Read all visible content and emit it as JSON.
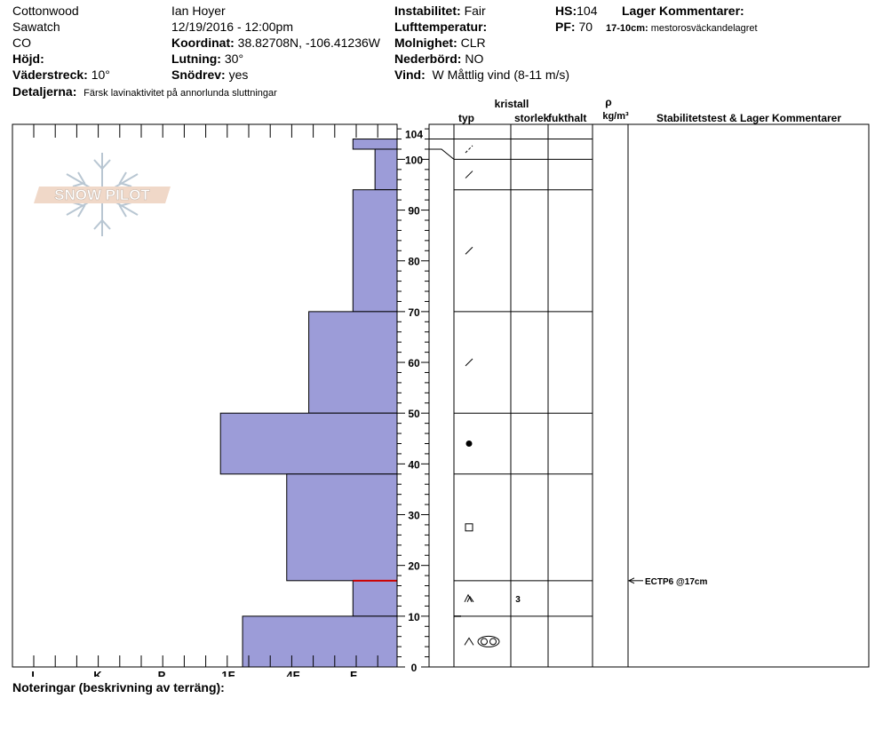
{
  "header": {
    "location": "Cottonwood",
    "range": "Sawatch",
    "state": "CO",
    "elevation_label": "Höjd:",
    "aspect_label": "Väderstreck:",
    "aspect_value": "10°",
    "details_label": "Detaljerna:",
    "details_value": "Färsk lavinaktivitet på annorlunda sluttningar",
    "observer": "Ian Hoyer",
    "datetime": "12/19/2016 - 12:00pm",
    "coord_label": "Koordinat:",
    "coord_value": "38.82708N, -106.41236W",
    "slope_label": "Lutning:",
    "slope_value": "30°",
    "blowing_label": "Snödrev:",
    "blowing_value": "yes",
    "stability_label": "Instabilitet:",
    "stability_value": "Fair",
    "airtemp_label": "Lufttemperatur:",
    "sky_label": "Molnighet:",
    "sky_value": "CLR",
    "precip_label": "Nederbörd:",
    "precip_value": "NO",
    "wind_label": "Vind:",
    "wind_value": "W Måttlig vind (8-11 m/s)",
    "hs_label": "HS:",
    "hs_value": "104",
    "pf_label": "PF:",
    "pf_value": "70",
    "layer_comments_label": "Lager Kommentarer:",
    "layer_comment_range": "17-10cm:",
    "layer_comment_text": "mestorosväckandelagret"
  },
  "logo_text": "SNOW PILOT",
  "notes_label": "Noteringar (beskrivning av terräng):",
  "columns": {
    "crystal": "kristall",
    "type": "typ",
    "size": "storlek",
    "moisture": "fukthalt",
    "rho": "ρ",
    "density_unit": "kg/m³",
    "stability": "Stabilitetstest & Lager Kommentarer"
  },
  "colors": {
    "hardness_fill": "#9c9cd8",
    "weak_layer_line": "#cc0000",
    "line": "#000000"
  },
  "chart_data": {
    "type": "bar",
    "description_axis": "hardness profile",
    "hardness_levels": [
      "I",
      "K",
      "P",
      "1F",
      "4F",
      "F"
    ],
    "ylim": [
      0,
      107
    ],
    "y_ticks": [
      0,
      10,
      20,
      30,
      40,
      50,
      60,
      70,
      80,
      90,
      100,
      104
    ],
    "layers": [
      {
        "top": 104,
        "bottom": 102,
        "hardness": 0.7
      },
      {
        "top": 102,
        "bottom": 94,
        "hardness": 0.35
      },
      {
        "top": 94,
        "bottom": 70,
        "hardness": 0.7
      },
      {
        "top": 70,
        "bottom": 50,
        "hardness": 1.4
      },
      {
        "top": 50,
        "bottom": 38,
        "hardness": 2.8
      },
      {
        "top": 38,
        "bottom": 17,
        "hardness": 1.75
      },
      {
        "top": 17,
        "bottom": 10,
        "hardness": 0.7
      },
      {
        "top": 10,
        "bottom": 0,
        "hardness": 2.45
      }
    ],
    "weak_layer": 17,
    "grain_layers": [
      {
        "top": 104,
        "bottom": 100,
        "symbol": "dashed-slash",
        "size": ""
      },
      {
        "top": 100,
        "bottom": 94,
        "symbol": "slash",
        "size": ""
      },
      {
        "top": 94,
        "bottom": 70,
        "symbol": "slash",
        "size": ""
      },
      {
        "top": 70,
        "bottom": 50,
        "symbol": "slash",
        "size": ""
      },
      {
        "top": 50,
        "bottom": 38,
        "symbol": "dot",
        "size": ""
      },
      {
        "top": 38,
        "bottom": 17,
        "symbol": "square",
        "size": ""
      },
      {
        "top": 17,
        "bottom": 10,
        "symbol": "double-caret",
        "size": "3"
      },
      {
        "top": 10,
        "bottom": 0,
        "symbol": "caret-rings",
        "size": ""
      }
    ],
    "stability_tests": [
      {
        "depth": 17,
        "label": "ECTP6 @17cm"
      }
    ]
  }
}
